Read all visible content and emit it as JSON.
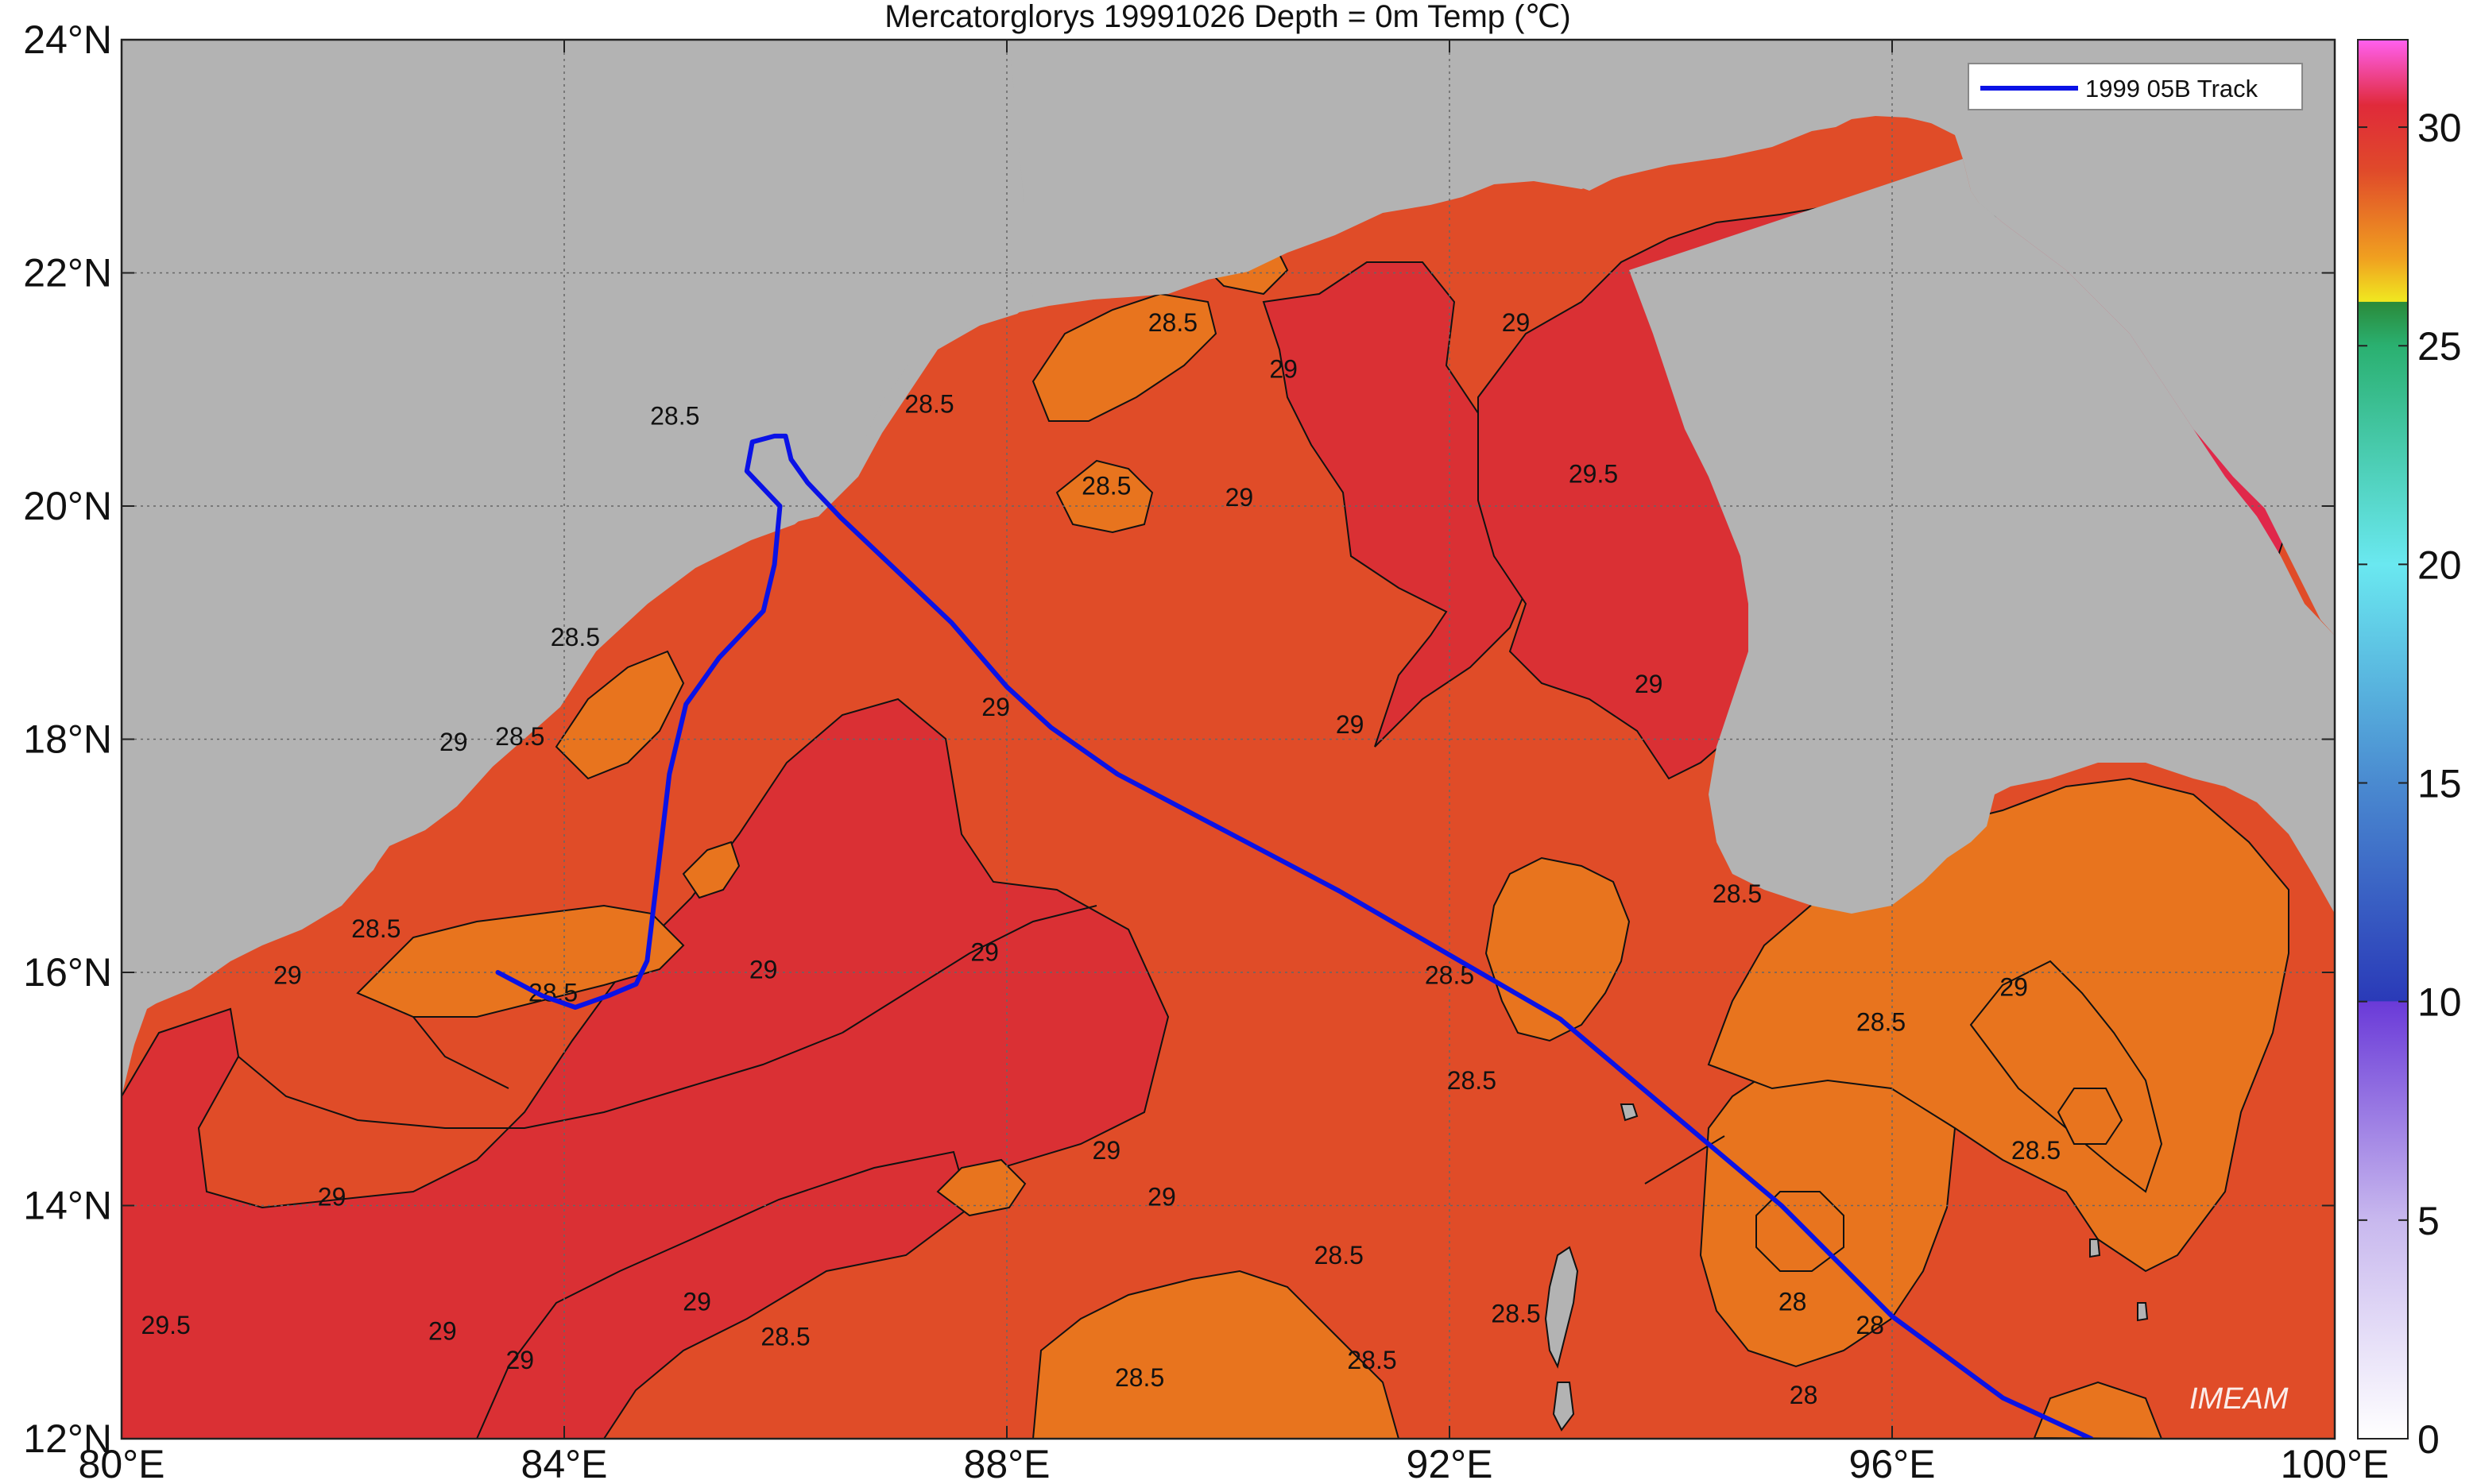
{
  "title": "Mercatorglorys 19991026 Depth = 0m Temp (℃)",
  "x_ticks": [
    "80°E",
    "84°E",
    "88°E",
    "92°E",
    "96°E",
    "100°E"
  ],
  "y_ticks": [
    "24°N",
    "22°N",
    "20°N",
    "18°N",
    "16°N",
    "14°N",
    "12°N"
  ],
  "legend": {
    "label": "1999 05B Track",
    "color": "#0a12e6"
  },
  "watermark": "IMEAM",
  "colorbar": {
    "ticks": [
      "30",
      "25",
      "20",
      "15",
      "10",
      "5",
      "0"
    ],
    "range": [
      0,
      32
    ],
    "stops": [
      {
        "v": 0,
        "c": "#ffffff"
      },
      {
        "v": 5,
        "c": "#c8b8ee"
      },
      {
        "v": 10,
        "c": "#6a3ad8"
      },
      {
        "v": 10.01,
        "c": "#2a3ab8"
      },
      {
        "v": 15,
        "c": "#4a8ad0"
      },
      {
        "v": 20,
        "c": "#6ae8f0"
      },
      {
        "v": 25,
        "c": "#2ab070"
      },
      {
        "v": 26,
        "c": "#2a8a3a"
      },
      {
        "v": 26.01,
        "c": "#f0e820"
      },
      {
        "v": 27,
        "c": "#f0a020"
      },
      {
        "v": 29,
        "c": "#e04a2a"
      },
      {
        "v": 30.5,
        "c": "#e02a3a"
      },
      {
        "v": 32,
        "c": "#ff60f0"
      }
    ]
  },
  "colors": {
    "land": "#b3b3b3",
    "sst_28": "#e8741e",
    "sst_28_5": "#e04c28",
    "sst_29": "#da3034",
    "sst_29_5": "#e0284a"
  },
  "contour_labels": [
    {
      "t": "28.5",
      "lon": 85.0,
      "lat": 20.7
    },
    {
      "t": "28.5",
      "lon": 82.3,
      "lat": 16.3
    },
    {
      "t": "28.5",
      "lon": 84.1,
      "lat": 18.8
    },
    {
      "t": "29",
      "lon": 83.0,
      "lat": 17.9
    },
    {
      "t": "28.5",
      "lon": 83.6,
      "lat": 17.95
    },
    {
      "t": "29",
      "lon": 81.5,
      "lat": 15.9
    },
    {
      "t": "28.5",
      "lon": 83.9,
      "lat": 15.75
    },
    {
      "t": "29",
      "lon": 85.8,
      "lat": 15.95
    },
    {
      "t": "29",
      "lon": 87.8,
      "lat": 16.1
    },
    {
      "t": "29",
      "lon": 81.9,
      "lat": 14.0
    },
    {
      "t": "29.5",
      "lon": 80.4,
      "lat": 12.9
    },
    {
      "t": "29",
      "lon": 82.9,
      "lat": 12.85
    },
    {
      "t": "29",
      "lon": 85.2,
      "lat": 13.1
    },
    {
      "t": "29",
      "lon": 83.6,
      "lat": 12.6
    },
    {
      "t": "28.5",
      "lon": 86.0,
      "lat": 12.8
    },
    {
      "t": "28.5",
      "lon": 87.3,
      "lat": 20.8
    },
    {
      "t": "28.5",
      "lon": 89.5,
      "lat": 21.5
    },
    {
      "t": "28.5",
      "lon": 88.9,
      "lat": 20.1
    },
    {
      "t": "29",
      "lon": 90.1,
      "lat": 20.0
    },
    {
      "t": "29",
      "lon": 90.5,
      "lat": 21.1
    },
    {
      "t": "29",
      "lon": 92.6,
      "lat": 21.5
    },
    {
      "t": "29.5",
      "lon": 93.3,
      "lat": 20.2
    },
    {
      "t": "29",
      "lon": 87.9,
      "lat": 18.2
    },
    {
      "t": "29",
      "lon": 91.1,
      "lat": 18.05
    },
    {
      "t": "29",
      "lon": 93.8,
      "lat": 18.4
    },
    {
      "t": "28.5",
      "lon": 94.6,
      "lat": 16.6
    },
    {
      "t": "28.5",
      "lon": 92.0,
      "lat": 15.9
    },
    {
      "t": "28.5",
      "lon": 92.2,
      "lat": 15.0
    },
    {
      "t": "28.5",
      "lon": 95.9,
      "lat": 15.5
    },
    {
      "t": "29",
      "lon": 97.1,
      "lat": 15.8
    },
    {
      "t": "28.5",
      "lon": 97.3,
      "lat": 14.4
    },
    {
      "t": "29",
      "lon": 88.9,
      "lat": 14.4
    },
    {
      "t": "29",
      "lon": 89.4,
      "lat": 14.0
    },
    {
      "t": "28.5",
      "lon": 91.0,
      "lat": 13.5
    },
    {
      "t": "28.5",
      "lon": 92.6,
      "lat": 13.0
    },
    {
      "t": "28.5",
      "lon": 91.3,
      "lat": 12.6
    },
    {
      "t": "28.5",
      "lon": 89.2,
      "lat": 12.45
    },
    {
      "t": "28",
      "lon": 95.1,
      "lat": 13.1
    },
    {
      "t": "28",
      "lon": 95.8,
      "lat": 12.9
    },
    {
      "t": "28",
      "lon": 95.2,
      "lat": 12.3
    }
  ],
  "track": [
    [
      83.4,
      16.0
    ],
    [
      83.8,
      15.8
    ],
    [
      84.1,
      15.7
    ],
    [
      84.4,
      15.8
    ],
    [
      84.65,
      15.9
    ],
    [
      84.75,
      16.1
    ],
    [
      84.85,
      16.9
    ],
    [
      84.95,
      17.7
    ],
    [
      85.1,
      18.3
    ],
    [
      85.4,
      18.7
    ],
    [
      85.8,
      19.1
    ],
    [
      85.9,
      19.5
    ],
    [
      85.95,
      20.0
    ],
    [
      85.65,
      20.3
    ],
    [
      85.7,
      20.55
    ],
    [
      85.9,
      20.6
    ],
    [
      86.0,
      20.6
    ],
    [
      86.05,
      20.4
    ],
    [
      86.2,
      20.2
    ],
    [
      86.5,
      19.9
    ],
    [
      87.0,
      19.45
    ],
    [
      87.5,
      19.0
    ],
    [
      88.0,
      18.45
    ],
    [
      88.4,
      18.1
    ],
    [
      89.0,
      17.7
    ],
    [
      90.0,
      17.2
    ],
    [
      91.0,
      16.7
    ],
    [
      92.0,
      16.15
    ],
    [
      93.0,
      15.6
    ],
    [
      94.0,
      14.8
    ],
    [
      95.0,
      14.0
    ],
    [
      96.0,
      13.05
    ],
    [
      97.0,
      12.35
    ],
    [
      97.8,
      12.0
    ]
  ]
}
